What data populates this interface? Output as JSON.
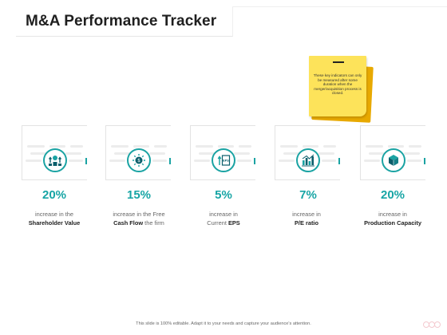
{
  "title": "M&A Performance Tracker",
  "note": {
    "text": "These key indicators can only be measured after some duration when the merger/acquisition process is closed."
  },
  "cards": [
    {
      "icon": "shareholder-value-icon",
      "value": "20%",
      "line1": "increase in the",
      "line2_pre": "",
      "line2_bold": "Shareholder Value",
      "line2_post": ""
    },
    {
      "icon": "cash-flow-icon",
      "value": "15%",
      "line1": "increase in the Free",
      "line2_pre": "",
      "line2_bold": "Cash Flow",
      "line2_post": " the firm"
    },
    {
      "icon": "eps-icon",
      "value": "5%",
      "line1": "increase in",
      "line2_pre": "Current ",
      "line2_bold": "EPS",
      "line2_post": ""
    },
    {
      "icon": "pe-ratio-icon",
      "value": "7%",
      "line1": "increase in",
      "line2_pre": "",
      "line2_bold": "P/E ratio",
      "line2_post": ""
    },
    {
      "icon": "production-capacity-icon",
      "value": "20%",
      "line1": "increase in",
      "line2_pre": "",
      "line2_bold": "Production Capacity",
      "line2_post": ""
    }
  ],
  "footer": "This slide is 100% editable. Adapt it to your needs and capture your audience's attention.",
  "colors": {
    "accent": "#17a5a5",
    "note": "#fde35a",
    "note_shadow": "#e8a900"
  }
}
